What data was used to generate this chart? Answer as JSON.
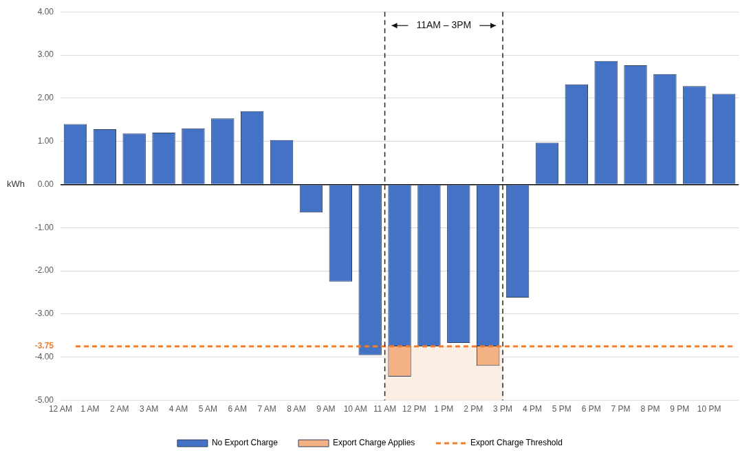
{
  "chart_data": {
    "type": "bar",
    "ylabel": "kWh",
    "stacked": true,
    "categories": [
      "12 AM",
      "1 AM",
      "2 AM",
      "3 AM",
      "4 AM",
      "5 AM",
      "6 AM",
      "7 AM",
      "8 AM",
      "9 AM",
      "10 AM",
      "11 AM",
      "12 PM",
      "1 PM",
      "2 PM",
      "3 PM",
      "4 PM",
      "5 PM",
      "6 PM",
      "7 PM",
      "8 PM",
      "9 PM",
      "10 PM"
    ],
    "series": [
      {
        "name": "No Export Charge",
        "color": "#4472c4",
        "values": [
          1.4,
          1.28,
          1.18,
          1.2,
          1.3,
          1.53,
          1.7,
          1.03,
          -0.65,
          -2.25,
          -3.95,
          -3.75,
          -3.75,
          -3.67,
          -3.75,
          -2.62,
          0.97,
          2.32,
          2.86,
          2.76,
          2.56,
          2.28,
          2.1
        ]
      },
      {
        "name": "Export Charge Applies",
        "color": "#f4b183",
        "values": [
          null,
          null,
          null,
          null,
          null,
          null,
          null,
          null,
          null,
          null,
          null,
          -0.7,
          null,
          null,
          -0.45,
          null,
          null,
          null,
          null,
          null,
          null,
          null,
          null
        ]
      }
    ],
    "ylim": [
      -5,
      4
    ],
    "yticks": [
      {
        "value": 4,
        "label": "4.00"
      },
      {
        "value": 3,
        "label": "3.00"
      },
      {
        "value": 2,
        "label": "2.00"
      },
      {
        "value": 1,
        "label": "1.00"
      },
      {
        "value": 0,
        "label": "0.00"
      },
      {
        "value": -1,
        "label": "-1.00"
      },
      {
        "value": -2,
        "label": "-2.00"
      },
      {
        "value": -3,
        "label": "-3.00"
      },
      {
        "value": -3.75,
        "label": "-3.75"
      },
      {
        "value": -4,
        "label": "-4.00"
      },
      {
        "value": -5,
        "label": "-5.00"
      }
    ],
    "ref_lines": [
      {
        "axis": "y",
        "value": -3.75,
        "label": "Export Charge Threshold",
        "color": "#ed7d31",
        "line_style": "dashed"
      },
      {
        "axis": "x",
        "value": "11 AM",
        "color": "#222222",
        "line_style": "dashed"
      },
      {
        "axis": "x",
        "value": "3 PM",
        "color": "#222222",
        "line_style": "dashed"
      }
    ],
    "bands": [
      {
        "axis": "x",
        "from": "11 AM",
        "to": "3 PM",
        "color": "#fbeee4"
      }
    ],
    "annotations": [
      "11AM – 3PM"
    ],
    "grid": "y",
    "legend": "bottom"
  }
}
